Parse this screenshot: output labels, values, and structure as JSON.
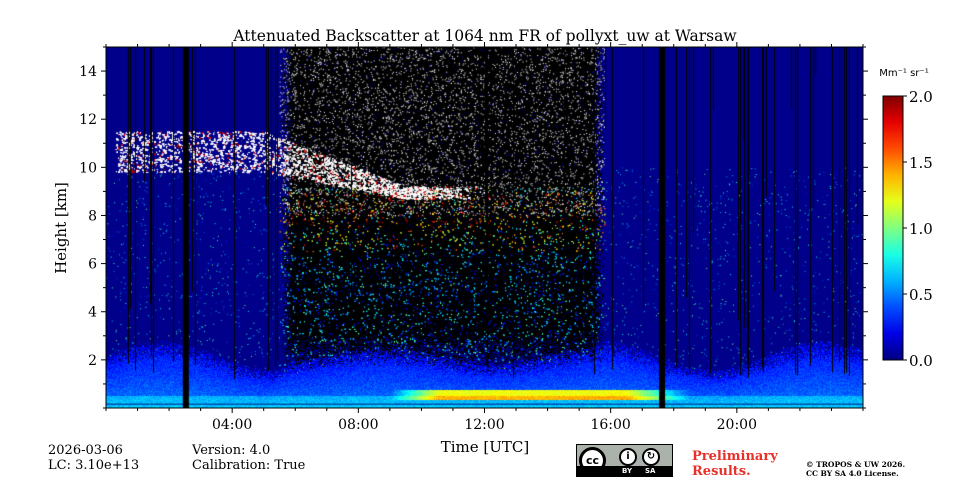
{
  "chart_data": {
    "type": "heatmap",
    "title": "Attenuated Backscatter at 1064 nm FR of pollyxt_uw at Warsaw",
    "xlabel": "Time [UTC]",
    "ylabel": "Height [km]",
    "xlim": [
      0,
      24
    ],
    "ylim": [
      0,
      15
    ],
    "x_ticks": [
      4,
      8,
      12,
      16,
      20
    ],
    "x_tick_labels": [
      "04:00",
      "08:00",
      "12:00",
      "16:00",
      "20:00"
    ],
    "y_ticks": [
      2,
      4,
      6,
      8,
      10,
      12,
      14
    ],
    "y_tick_labels": [
      "2",
      "4",
      "6",
      "8",
      "10",
      "12",
      "14"
    ],
    "colorbar": {
      "label": "Mm⁻¹ sr⁻¹",
      "range": [
        0,
        2.0
      ],
      "ticks": [
        0.0,
        0.5,
        1.0,
        1.5,
        2.0
      ],
      "tick_labels": [
        "0.0",
        "0.5",
        "1.0",
        "1.5",
        "2.0"
      ],
      "colormap": "jet"
    },
    "background_value": 0.02,
    "cloud_layer": {
      "value": "above max (white)",
      "time_range": [
        0.3,
        12.0
      ],
      "height_top_km": [
        11.4,
        9.2
      ],
      "height_bottom_km": [
        9.8,
        8.7
      ]
    },
    "boundary_layer": {
      "time_range": [
        0,
        24
      ],
      "height_km": [
        0.2,
        2.5
      ],
      "peak_value": 1.2,
      "peak_time_range": [
        10.5,
        15.5
      ]
    },
    "night_noise_period": [
      5.5,
      15.8
    ],
    "data_gaps_hours": [
      2.5,
      17.6
    ]
  },
  "footer": {
    "date": "2026-03-06",
    "lc": "LC: 3.10e+13",
    "version": "Version: 4.0",
    "calibration": "Calibration: True",
    "preliminary_line1": "Preliminary",
    "preliminary_line2": "Results.",
    "copyright_line1": "© TROPOS & UW 2026.",
    "copyright_line2": "CC BY SA 4.0 License.",
    "cc_logo": "cc",
    "cc_by": "BY",
    "cc_sa": "SA"
  },
  "colors": {
    "background_blue": "#0040e0",
    "cloud": "#ffffff",
    "gap": "#000000",
    "prelim": "#e8302a"
  }
}
